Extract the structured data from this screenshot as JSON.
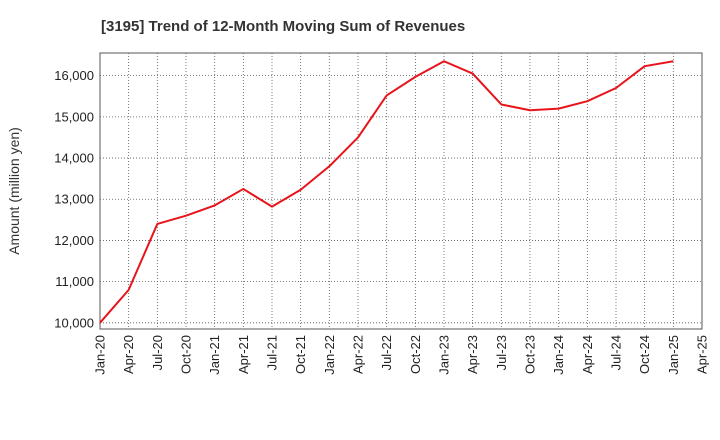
{
  "chart_data": {
    "type": "line",
    "title": "[3195]  Trend of 12-Month Moving Sum of Revenues",
    "xlabel": "",
    "ylabel": "Amount (million yen)",
    "ylim": [
      9850,
      16550
    ],
    "yticks": [
      10000,
      11000,
      12000,
      13000,
      14000,
      15000,
      16000
    ],
    "ytick_labels": [
      "10,000",
      "11,000",
      "12,000",
      "13,000",
      "14,000",
      "15,000",
      "16,000"
    ],
    "xtick_labels": [
      "Jan-20",
      "Apr-20",
      "Jul-20",
      "Oct-20",
      "Jan-21",
      "Apr-21",
      "Jul-21",
      "Oct-21",
      "Jan-22",
      "Apr-22",
      "Jul-22",
      "Oct-22",
      "Jan-23",
      "Apr-23",
      "Jul-23",
      "Oct-23",
      "Jan-24",
      "Apr-24",
      "Jul-24",
      "Oct-24",
      "Jan-25",
      "Apr-25"
    ],
    "grid": true,
    "series": [
      {
        "name": "",
        "color": "#e8141b",
        "x": [
          "Jan-20",
          "Apr-20",
          "Jul-20",
          "Oct-20",
          "Jan-21",
          "Apr-21",
          "Jul-21",
          "Oct-21",
          "Jan-22",
          "Apr-22",
          "Jul-22",
          "Oct-22",
          "Jan-23",
          "Apr-23",
          "Jul-23",
          "Oct-23",
          "Jan-24",
          "Apr-24",
          "Jul-24",
          "Oct-24",
          "Jan-25"
        ],
        "values": [
          10000,
          10800,
          12400,
          12600,
          12850,
          13250,
          12820,
          13230,
          13800,
          14500,
          15520,
          15970,
          16350,
          16050,
          15300,
          15160,
          15200,
          15380,
          15700,
          16230,
          16350
        ]
      }
    ]
  }
}
